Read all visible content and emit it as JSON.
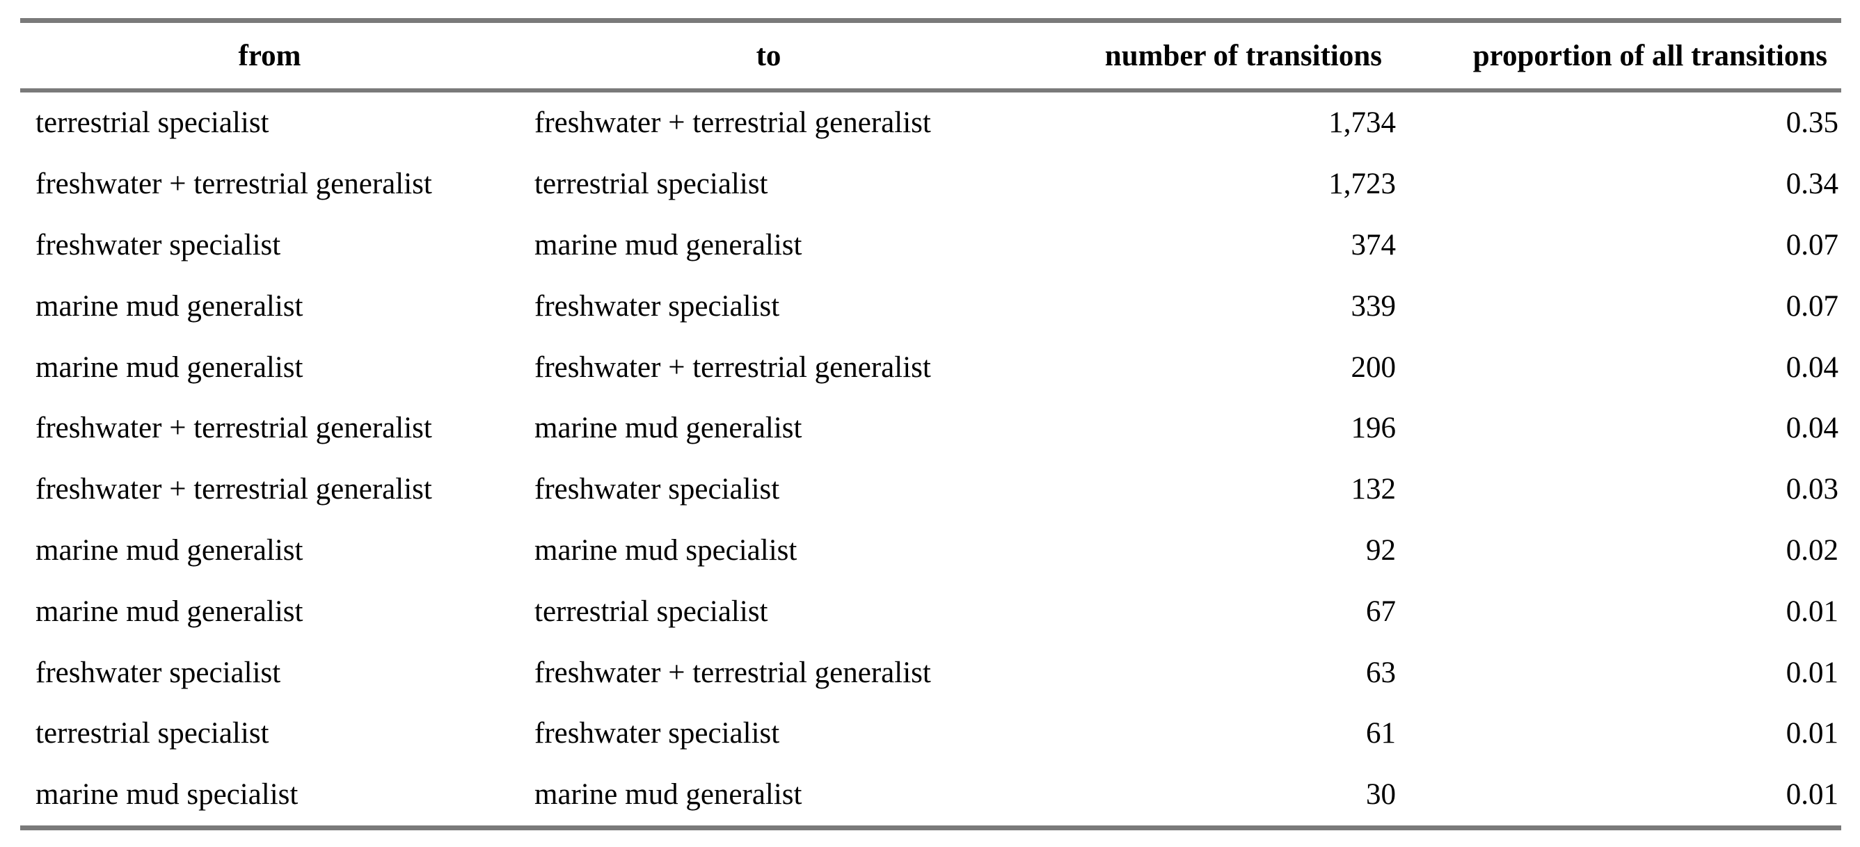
{
  "table": {
    "headers": {
      "from": "from",
      "to": "to",
      "number": "number of transitions",
      "proportion": "proportion of all transitions"
    },
    "rows": [
      {
        "from": "terrestrial specialist",
        "to": "freshwater + terrestrial generalist",
        "number": "1,734",
        "proportion": "0.35"
      },
      {
        "from": "freshwater + terrestrial generalist",
        "to": "terrestrial specialist",
        "number": "1,723",
        "proportion": "0.34"
      },
      {
        "from": "freshwater specialist",
        "to": "marine mud generalist",
        "number": "374",
        "proportion": "0.07"
      },
      {
        "from": "marine mud generalist",
        "to": "freshwater specialist",
        "number": "339",
        "proportion": "0.07"
      },
      {
        "from": "marine mud generalist",
        "to": "freshwater + terrestrial generalist",
        "number": "200",
        "proportion": "0.04"
      },
      {
        "from": "freshwater + terrestrial generalist",
        "to": "marine mud generalist",
        "number": "196",
        "proportion": "0.04"
      },
      {
        "from": "freshwater + terrestrial generalist",
        "to": "freshwater specialist",
        "number": "132",
        "proportion": "0.03"
      },
      {
        "from": "marine mud generalist",
        "to": "marine mud specialist",
        "number": "92",
        "proportion": "0.02"
      },
      {
        "from": "marine mud generalist",
        "to": "terrestrial specialist",
        "number": "67",
        "proportion": "0.01"
      },
      {
        "from": "freshwater specialist",
        "to": "freshwater + terrestrial generalist",
        "number": "63",
        "proportion": "0.01"
      },
      {
        "from": "terrestrial specialist",
        "to": "freshwater specialist",
        "number": "61",
        "proportion": "0.01"
      },
      {
        "from": "marine mud specialist",
        "to": "marine mud generalist",
        "number": "30",
        "proportion": "0.01"
      }
    ]
  }
}
